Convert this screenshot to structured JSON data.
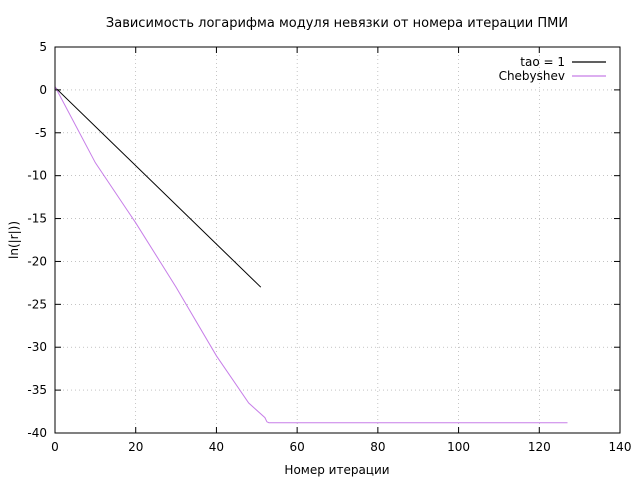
{
  "chart_data": {
    "type": "line",
    "title": "Зависимость логарифма модуля невязки от номера итерации ПМИ",
    "xlabel": "Номер итерации",
    "ylabel": "ln(|r|))",
    "xlim": [
      0,
      140
    ],
    "ylim": [
      -40,
      5
    ],
    "xticks": [
      0,
      20,
      40,
      60,
      80,
      100,
      120,
      140
    ],
    "yticks": [
      5,
      0,
      -5,
      -10,
      -15,
      -20,
      -25,
      -30,
      -35,
      -40
    ],
    "grid": true,
    "legend_position": "top-right",
    "series": [
      {
        "name": "tao = 1",
        "color": "#000000",
        "x": [
          0,
          51
        ],
        "y": [
          0.3,
          -23.0
        ]
      },
      {
        "name": "Chebyshev",
        "color": "#c77ee8",
        "x": [
          0,
          10,
          20,
          30,
          40,
          48,
          52,
          52.5,
          53,
          60,
          80,
          100,
          127
        ],
        "y": [
          0.4,
          -8.5,
          -15.5,
          -23.0,
          -31.0,
          -36.5,
          -38.2,
          -38.7,
          -38.8,
          -38.8,
          -38.8,
          -38.8,
          -38.8
        ]
      }
    ]
  }
}
